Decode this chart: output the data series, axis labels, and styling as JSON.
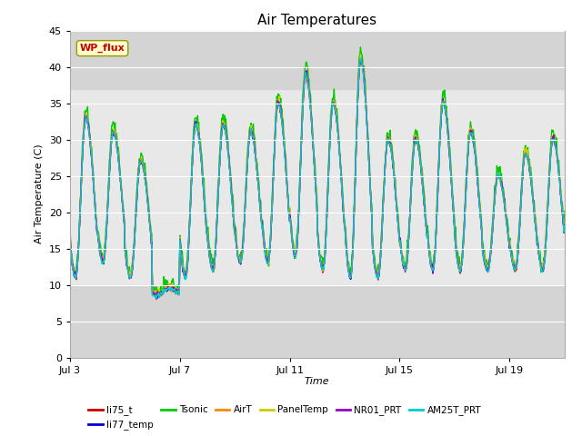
{
  "title": "Air Temperatures",
  "xlabel": "Time",
  "ylabel": "Air Temperature (C)",
  "ylim": [
    0,
    45
  ],
  "yticks": [
    0,
    5,
    10,
    15,
    20,
    25,
    30,
    35,
    40,
    45
  ],
  "x_start_day": 3,
  "n_days": 18,
  "x_tick_days": [
    3,
    7,
    11,
    15,
    19
  ],
  "x_tick_labels": [
    "Jul 3",
    "Jul 7",
    "Jul 11",
    "Jul 15",
    "Jul 19"
  ],
  "fig_bg_color": "#ffffff",
  "plot_bg_color": "#e8e8e8",
  "series": [
    {
      "name": "li75_t",
      "color": "#cc0000"
    },
    {
      "name": "li77_temp",
      "color": "#0000cc"
    },
    {
      "name": "Tsonic",
      "color": "#00cc00"
    },
    {
      "name": "AirT",
      "color": "#ff8800"
    },
    {
      "name": "PanelTemp",
      "color": "#cccc00"
    },
    {
      "name": "NR01_PRT",
      "color": "#9900cc"
    },
    {
      "name": "AM25T_PRT",
      "color": "#00cccc"
    }
  ],
  "annotation_text": "WP_flux",
  "annotation_facecolor": "#ffffcc",
  "annotation_edgecolor": "#999900",
  "annotation_textcolor": "#cc0000",
  "shaded_bands": [
    {
      "ymin": 0,
      "ymax": 10,
      "color": "#d4d4d4"
    },
    {
      "ymin": 37,
      "ymax": 45,
      "color": "#d4d4d4"
    }
  ],
  "grid_color": "#ffffff",
  "daily_max": [
    33,
    31,
    27,
    9.5,
    32,
    32,
    31,
    35,
    39,
    35,
    41,
    30,
    30,
    35,
    31,
    25,
    28,
    30,
    30
  ],
  "daily_min": [
    11,
    13,
    11,
    8.5,
    11,
    12,
    13,
    13,
    14,
    12,
    11,
    11,
    12,
    12,
    12,
    12,
    12,
    12,
    14
  ],
  "peak_hour": 0.58,
  "trough_hour": 0.21,
  "resolution_hours": 0.5
}
